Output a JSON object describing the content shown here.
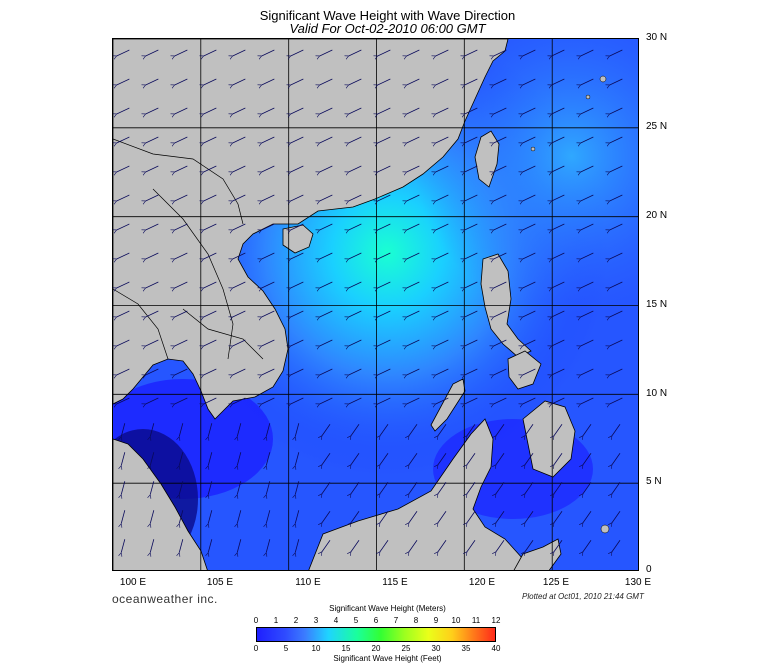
{
  "title": "Significant Wave Height with Wave Direction",
  "subtitle": "Valid For Oct-02-2010 06:00 GMT",
  "lat_labels": [
    "30 N",
    "25 N",
    "20 N",
    "15 N",
    "10 N",
    "5 N",
    "0"
  ],
  "lon_labels": [
    "100 E",
    "105 E",
    "110 E",
    "115 E",
    "120 E",
    "125 E",
    "130 E"
  ],
  "brand": "oceanweather inc.",
  "plotted": "Plotted at Oct01, 2010 21:44 GMT",
  "legend": {
    "meters_title": "Significant Wave Height (Meters)",
    "feet_title": "Significant Wave Height (Feet)",
    "meters_ticks": [
      "0",
      "1",
      "2",
      "3",
      "4",
      "5",
      "6",
      "7",
      "8",
      "9",
      "10",
      "11",
      "12"
    ],
    "feet_ticks": [
      "0",
      "5",
      "10",
      "15",
      "20",
      "25",
      "30",
      "35",
      "40"
    ]
  },
  "colors": {
    "land": "#c0c0c0",
    "sea_low": "#1a2bff",
    "sea_mid": "#2f86ff",
    "sea_high": "#1affd2",
    "arrow": "#0a0a5a"
  }
}
